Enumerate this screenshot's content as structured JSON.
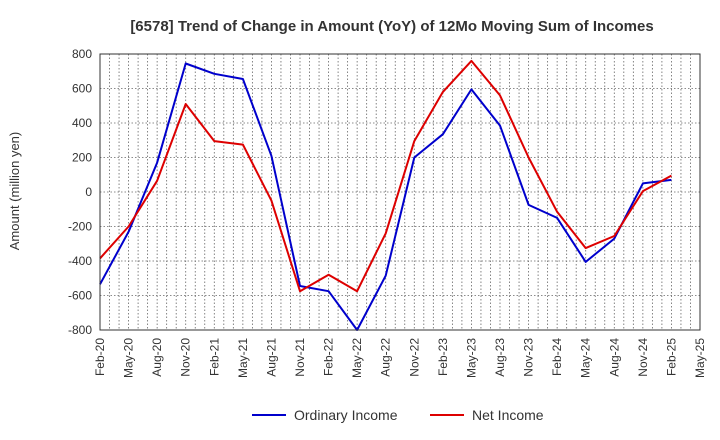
{
  "chart_data": {
    "type": "line",
    "title": "[6578]  Trend of Change in Amount (YoY) of 12Mo Moving Sum of Incomes",
    "xlabel": "",
    "ylabel": "Amount (million yen)",
    "ylim": [
      -800,
      800
    ],
    "yticks": [
      800,
      600,
      400,
      200,
      0,
      -200,
      -400,
      -600,
      -800
    ],
    "grid": true,
    "legend_position": "bottom-center",
    "categories": [
      "Feb-20",
      "May-20",
      "Aug-20",
      "Nov-20",
      "Feb-21",
      "May-21",
      "Aug-21",
      "Nov-21",
      "Feb-22",
      "May-22",
      "Aug-22",
      "Nov-22",
      "Feb-23",
      "May-23",
      "Aug-23",
      "Nov-23",
      "Feb-24",
      "May-24",
      "Aug-24",
      "Nov-24",
      "Feb-25",
      "May-25"
    ],
    "series": [
      {
        "name": "Ordinary Income",
        "color": "#0000cc",
        "values": [
          -535,
          -230,
          170,
          745,
          685,
          655,
          210,
          -545,
          -575,
          -800,
          -485,
          200,
          335,
          595,
          385,
          -75,
          -150,
          -405,
          -270,
          50,
          70,
          null
        ]
      },
      {
        "name": "Net Income",
        "color": "#dd0000",
        "values": [
          -385,
          -200,
          65,
          510,
          295,
          275,
          -50,
          -575,
          -480,
          -575,
          -240,
          295,
          580,
          760,
          560,
          200,
          -115,
          -325,
          -255,
          5,
          95,
          null
        ]
      }
    ]
  }
}
